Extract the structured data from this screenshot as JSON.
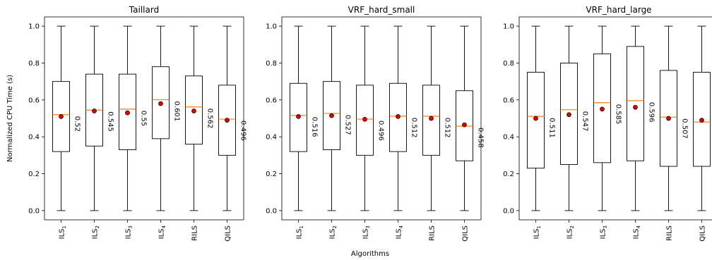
{
  "figure": {
    "ylabel": "Normalized CPU Time (s)",
    "xlabel": "Algorithms"
  },
  "chart_data": [
    {
      "type": "box",
      "title": "Taillard",
      "categories": [
        "ILS1",
        "ILS2",
        "ILS3",
        "ILS4",
        "RILS",
        "QILS"
      ],
      "category_labels": [
        {
          "base": "ILS",
          "sub": "1"
        },
        {
          "base": "ILS",
          "sub": "2"
        },
        {
          "base": "ILS",
          "sub": "3"
        },
        {
          "base": "ILS",
          "sub": "4"
        },
        {
          "base": "RILS",
          "sub": ""
        },
        {
          "base": "QILS",
          "sub": ""
        }
      ],
      "boxes": [
        {
          "min": 0.0,
          "q1": 0.32,
          "median": 0.52,
          "q3": 0.7,
          "max": 1.0,
          "mean": 0.51,
          "median_label": "0.52"
        },
        {
          "min": 0.0,
          "q1": 0.35,
          "median": 0.545,
          "q3": 0.74,
          "max": 1.0,
          "mean": 0.54,
          "median_label": "0.545"
        },
        {
          "min": 0.0,
          "q1": 0.33,
          "median": 0.55,
          "q3": 0.74,
          "max": 1.0,
          "mean": 0.53,
          "median_label": "0.55"
        },
        {
          "min": 0.0,
          "q1": 0.39,
          "median": 0.601,
          "q3": 0.78,
          "max": 1.0,
          "mean": 0.58,
          "median_label": "0.601"
        },
        {
          "min": 0.0,
          "q1": 0.36,
          "median": 0.562,
          "q3": 0.73,
          "max": 1.0,
          "mean": 0.54,
          "median_label": "0.562"
        },
        {
          "min": 0.0,
          "q1": 0.3,
          "median": 0.496,
          "q3": 0.68,
          "max": 1.0,
          "mean": 0.49,
          "median_label": "0.496"
        }
      ],
      "ylim": [
        -0.05,
        1.05
      ],
      "yticks": [
        "0.0",
        "0.2",
        "0.4",
        "0.6",
        "0.8",
        "1.0"
      ],
      "grid": false
    },
    {
      "type": "box",
      "title": "VRF_hard_small",
      "categories": [
        "ILS1",
        "ILS2",
        "ILS3",
        "ILS4",
        "RILS",
        "QILS"
      ],
      "category_labels": [
        {
          "base": "ILS",
          "sub": "1"
        },
        {
          "base": "ILS",
          "sub": "2"
        },
        {
          "base": "ILS",
          "sub": "3"
        },
        {
          "base": "ILS",
          "sub": "4"
        },
        {
          "base": "RILS",
          "sub": ""
        },
        {
          "base": "QILS",
          "sub": ""
        }
      ],
      "boxes": [
        {
          "min": 0.0,
          "q1": 0.32,
          "median": 0.516,
          "q3": 0.69,
          "max": 1.0,
          "mean": 0.51,
          "median_label": "0.516"
        },
        {
          "min": 0.0,
          "q1": 0.33,
          "median": 0.527,
          "q3": 0.7,
          "max": 1.0,
          "mean": 0.515,
          "median_label": "0.527"
        },
        {
          "min": 0.0,
          "q1": 0.3,
          "median": 0.496,
          "q3": 0.68,
          "max": 1.0,
          "mean": 0.495,
          "median_label": "0.496"
        },
        {
          "min": 0.0,
          "q1": 0.32,
          "median": 0.512,
          "q3": 0.69,
          "max": 1.0,
          "mean": 0.51,
          "median_label": "0.512"
        },
        {
          "min": 0.0,
          "q1": 0.3,
          "median": 0.512,
          "q3": 0.68,
          "max": 1.0,
          "mean": 0.5,
          "median_label": "0.512"
        },
        {
          "min": 0.0,
          "q1": 0.27,
          "median": 0.458,
          "q3": 0.65,
          "max": 1.0,
          "mean": 0.465,
          "median_label": "0.458"
        }
      ],
      "ylim": [
        -0.05,
        1.05
      ],
      "yticks": [
        "0.0",
        "0.2",
        "0.4",
        "0.6",
        "0.8",
        "1.0"
      ],
      "grid": false
    },
    {
      "type": "box",
      "title": "VRF_hard_large",
      "categories": [
        "ILS1",
        "ILS2",
        "ILS3",
        "ILS4",
        "RILS",
        "QILS"
      ],
      "category_labels": [
        {
          "base": "ILS",
          "sub": "1"
        },
        {
          "base": "ILS",
          "sub": "2"
        },
        {
          "base": "ILS",
          "sub": "3"
        },
        {
          "base": "ILS",
          "sub": "4"
        },
        {
          "base": "RILS",
          "sub": ""
        },
        {
          "base": "QILS",
          "sub": ""
        }
      ],
      "boxes": [
        {
          "min": 0.0,
          "q1": 0.23,
          "median": 0.511,
          "q3": 0.75,
          "max": 1.0,
          "mean": 0.5,
          "median_label": "0.511"
        },
        {
          "min": 0.0,
          "q1": 0.25,
          "median": 0.547,
          "q3": 0.8,
          "max": 1.0,
          "mean": 0.52,
          "median_label": "0.547"
        },
        {
          "min": 0.0,
          "q1": 0.26,
          "median": 0.585,
          "q3": 0.85,
          "max": 1.0,
          "mean": 0.55,
          "median_label": "0.585"
        },
        {
          "min": 0.0,
          "q1": 0.27,
          "median": 0.596,
          "q3": 0.89,
          "max": 1.0,
          "mean": 0.56,
          "median_label": "0.596"
        },
        {
          "min": 0.0,
          "q1": 0.24,
          "median": 0.507,
          "q3": 0.76,
          "max": 1.0,
          "mean": 0.5,
          "median_label": "0.507"
        },
        {
          "min": 0.0,
          "q1": 0.24,
          "median": 0.48,
          "q3": 0.75,
          "max": 1.0,
          "mean": 0.49,
          "median_label": ""
        }
      ],
      "ylim": [
        -0.05,
        1.05
      ],
      "yticks": [
        "0.0",
        "0.2",
        "0.4",
        "0.6",
        "0.8",
        "1.0"
      ],
      "grid": false
    }
  ],
  "colors": {
    "box": "#000000",
    "median": "#ff7f0e",
    "mean_fill": "#e00000",
    "mean_edge": "#000000"
  }
}
